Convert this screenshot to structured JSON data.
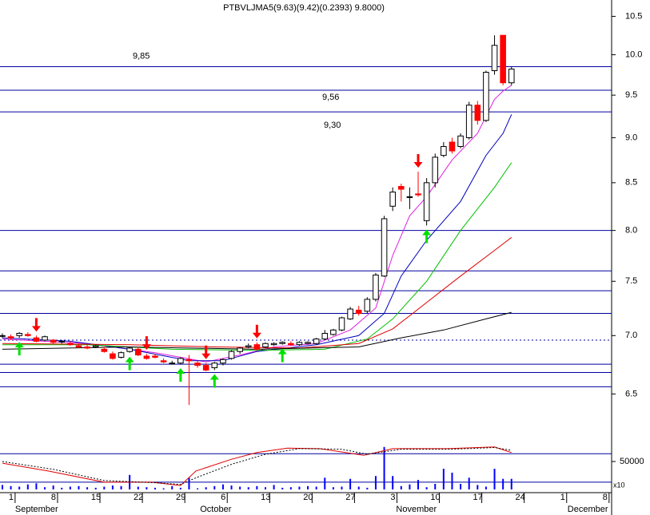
{
  "chart_data": [
    {
      "type": "candlestick",
      "title": "PTBVLJMA5(9.63)(9.42)(0.2393) 9.8000)",
      "log": true,
      "xlim": [
        -0.28,
        71.8
      ],
      "xticks": [
        {
          "value": 1.5,
          "label": "1"
        },
        {
          "value": 6.5,
          "label": "8"
        },
        {
          "value": 11.5,
          "label": "15"
        },
        {
          "value": 16.5,
          "label": "22"
        },
        {
          "value": 21.5,
          "label": "29"
        },
        {
          "value": 26.5,
          "label": "6"
        },
        {
          "value": 31.5,
          "label": "13"
        },
        {
          "value": 36.5,
          "label": "20"
        },
        {
          "value": 41.5,
          "label": "27"
        },
        {
          "value": 46.5,
          "label": "3"
        },
        {
          "value": 51.5,
          "label": "10"
        },
        {
          "value": 56.5,
          "label": "17"
        },
        {
          "value": 61.5,
          "label": "24"
        },
        {
          "value": 66.5,
          "label": "1"
        },
        {
          "value": 71.5,
          "label": "8"
        }
      ],
      "month_labels": [
        {
          "value": 1.5,
          "label": "September"
        },
        {
          "value": 23.3,
          "label": "October"
        },
        {
          "value": 46.4,
          "label": "November"
        },
        {
          "value": 66.6,
          "label": "December"
        }
      ],
      "ylim": [
        6.2,
        10.72
      ],
      "yticks": [
        6.5,
        {
          "value": 7,
          "label": "7.0"
        },
        7.5,
        {
          "value": 8,
          "label": "8.0"
        },
        8.5,
        {
          "value": 9,
          "label": "9.0"
        },
        9.5,
        {
          "value": 10,
          "label": "10.0"
        },
        10.5
      ],
      "up_color": "#ffffff",
      "down_color": "#ff0000",
      "open": [
        7.0,
        6.99,
        7.0,
        7.01,
        6.98,
        6.96,
        6.96,
        6.95,
        6.93,
        6.91,
        6.9,
        6.9,
        6.88,
        6.84,
        6.81,
        6.86,
        6.88,
        6.82,
        6.82,
        6.78,
        6.76,
        6.76,
        6.79,
        6.76,
        6.74,
        6.72,
        6.76,
        6.8,
        6.86,
        6.9,
        6.92,
        6.9,
        6.92,
        6.93,
        6.93,
        6.92,
        6.93,
        6.93,
        6.97,
        7.01,
        7.05,
        7.15,
        7.23,
        7.22,
        7.33,
        7.55,
        8.25,
        8.46,
        8.35,
        8.38,
        8.1,
        8.5,
        8.8,
        8.95,
        8.9,
        9.0,
        9.38,
        9.2,
        9.8,
        10.25,
        9.65
      ],
      "high": [
        7.02,
        7.01,
        7.03,
        7.03,
        7.0,
        7.0,
        6.97,
        6.96,
        6.95,
        6.93,
        6.92,
        6.92,
        6.9,
        6.86,
        6.86,
        6.9,
        6.9,
        6.84,
        6.84,
        6.8,
        6.78,
        6.81,
        6.83,
        6.78,
        6.76,
        6.77,
        6.8,
        6.87,
        6.9,
        6.93,
        6.94,
        6.94,
        6.94,
        6.95,
        6.95,
        6.95,
        6.95,
        6.98,
        7.05,
        7.06,
        7.17,
        7.26,
        7.27,
        7.35,
        7.58,
        8.15,
        8.45,
        8.49,
        8.45,
        8.62,
        8.55,
        8.82,
        8.95,
        9.0,
        9.05,
        9.42,
        9.43,
        9.8,
        10.25,
        10.25,
        9.85
      ],
      "low": [
        6.98,
        6.96,
        6.98,
        6.99,
        6.94,
        6.95,
        6.93,
        6.93,
        6.91,
        6.89,
        6.88,
        6.89,
        6.85,
        6.79,
        6.8,
        6.85,
        6.82,
        6.79,
        6.8,
        6.76,
        6.75,
        6.75,
        6.41,
        6.72,
        6.69,
        6.7,
        6.74,
        6.79,
        6.84,
        6.89,
        6.87,
        6.89,
        6.91,
        6.92,
        6.91,
        6.91,
        6.92,
        6.92,
        6.96,
        7.0,
        7.04,
        7.14,
        7.18,
        7.2,
        7.31,
        7.54,
        8.2,
        8.3,
        8.22,
        8.35,
        8.05,
        8.45,
        8.78,
        8.82,
        8.88,
        8.98,
        9.15,
        9.18,
        9.75,
        9.62,
        9.62
      ],
      "close": [
        7.0,
        6.98,
        7.02,
        7.0,
        6.95,
        6.99,
        6.94,
        6.95,
        6.92,
        6.9,
        6.89,
        6.91,
        6.86,
        6.8,
        6.85,
        6.89,
        6.83,
        6.8,
        6.81,
        6.77,
        6.76,
        6.8,
        6.78,
        6.74,
        6.7,
        6.76,
        6.79,
        6.86,
        6.89,
        6.91,
        6.88,
        6.93,
        6.93,
        6.94,
        6.92,
        6.94,
        6.94,
        6.97,
        7.02,
        7.05,
        7.16,
        7.24,
        7.2,
        7.33,
        7.56,
        8.12,
        8.4,
        8.43,
        8.35,
        8.37,
        8.5,
        8.78,
        8.9,
        8.85,
        9.02,
        9.38,
        9.2,
        9.78,
        10.12,
        9.65,
        9.82
      ],
      "series": [
        {
          "color": "#e020e0",
          "x": [
            0,
            10,
            18,
            24,
            28,
            32,
            37,
            41,
            44,
            46,
            48,
            50,
            53,
            56,
            58,
            59,
            60
          ],
          "values": [
            6.97,
            6.93,
            6.85,
            6.77,
            6.83,
            6.9,
            6.93,
            7.05,
            7.25,
            7.75,
            8.15,
            8.35,
            8.75,
            9.05,
            9.45,
            9.55,
            9.62
          ]
        },
        {
          "color": "#0000c0",
          "x": [
            0,
            8,
            15,
            22,
            26,
            30,
            37,
            42,
            45,
            47,
            50,
            54,
            57,
            59,
            60
          ],
          "values": [
            6.98,
            6.95,
            6.88,
            6.78,
            6.78,
            6.86,
            6.92,
            7.0,
            7.2,
            7.55,
            7.9,
            8.3,
            8.8,
            9.05,
            9.27
          ]
        },
        {
          "color": "#00c000",
          "x": [
            0,
            10,
            20,
            30,
            38,
            43,
            46,
            50,
            54,
            58,
            60
          ],
          "values": [
            6.92,
            6.92,
            6.88,
            6.87,
            6.88,
            6.97,
            7.15,
            7.5,
            8.0,
            8.45,
            8.72
          ]
        },
        {
          "color": "#e00000",
          "x": [
            0,
            15,
            25,
            35,
            42,
            46,
            50,
            54,
            58,
            60
          ],
          "values": [
            6.93,
            6.92,
            6.9,
            6.89,
            6.93,
            7.06,
            7.3,
            7.55,
            7.8,
            7.93
          ]
        },
        {
          "color": "#000000",
          "x": [
            0,
            15,
            30,
            42,
            47,
            52,
            57,
            60
          ],
          "values": [
            6.88,
            6.9,
            6.88,
            6.9,
            6.98,
            7.05,
            7.15,
            7.21
          ]
        }
      ],
      "level_color": "#0000a0",
      "levels": [
        {
          "value": 9.85,
          "label": "9,85"
        },
        {
          "value": 9.56,
          "label": "9,56"
        },
        {
          "value": 9.3,
          "label": "9,30"
        },
        8.0,
        7.6,
        7.41,
        7.2,
        6.75,
        6.68,
        6.56
      ],
      "dashed_level": 6.96,
      "buy_signals": [
        2,
        15,
        21,
        25,
        33,
        50
      ],
      "sell_signals": [
        4,
        17,
        24,
        30,
        49
      ]
    },
    {
      "type": "volume",
      "color": "#0000ff",
      "ylim": [
        0,
        100000
      ],
      "yticks": [
        50000
      ],
      "unit_label": "x10",
      "values": [
        8000,
        6000,
        5000,
        9000,
        11000,
        4000,
        7000,
        3000,
        5000,
        6000,
        4000,
        3000,
        5000,
        7000,
        6000,
        26000,
        5000,
        4000,
        3000,
        2000,
        6000,
        3000,
        21000,
        2000,
        4000,
        6000,
        9000,
        7000,
        5000,
        4000,
        6000,
        4000,
        8000,
        3000,
        4000,
        5000,
        6000,
        5000,
        21000,
        4000,
        5000,
        19000,
        5000,
        3000,
        24000,
        76000,
        24000,
        6000,
        9000,
        17000,
        4000,
        10000,
        37000,
        30000,
        10000,
        21000,
        8000,
        5000,
        37000,
        19000,
        19000
      ],
      "y2lim": [
        0,
        100
      ],
      "levels": [
        64,
        13
      ],
      "series": [
        {
          "color": "#e00000",
          "axis": "y2",
          "x": [
            0,
            5.4,
            12,
            17.6,
            21,
            22.8,
            27,
            30,
            33.6,
            37.4,
            42.6,
            46,
            52.5,
            58,
            60
          ],
          "values": [
            47,
            33,
            13,
            13,
            7,
            33,
            54,
            66,
            74,
            73,
            61,
            73,
            73,
            76,
            66
          ]
        },
        {
          "color": "#000000",
          "axis": "y2",
          "dashed": true,
          "x": [
            0,
            6,
            12,
            18,
            21,
            23,
            27,
            31,
            35,
            40,
            43,
            47,
            53,
            58,
            60
          ],
          "values": [
            50,
            36,
            16,
            12,
            9,
            22,
            45,
            63,
            73,
            72,
            63,
            72,
            72,
            75,
            70
          ]
        }
      ]
    }
  ]
}
